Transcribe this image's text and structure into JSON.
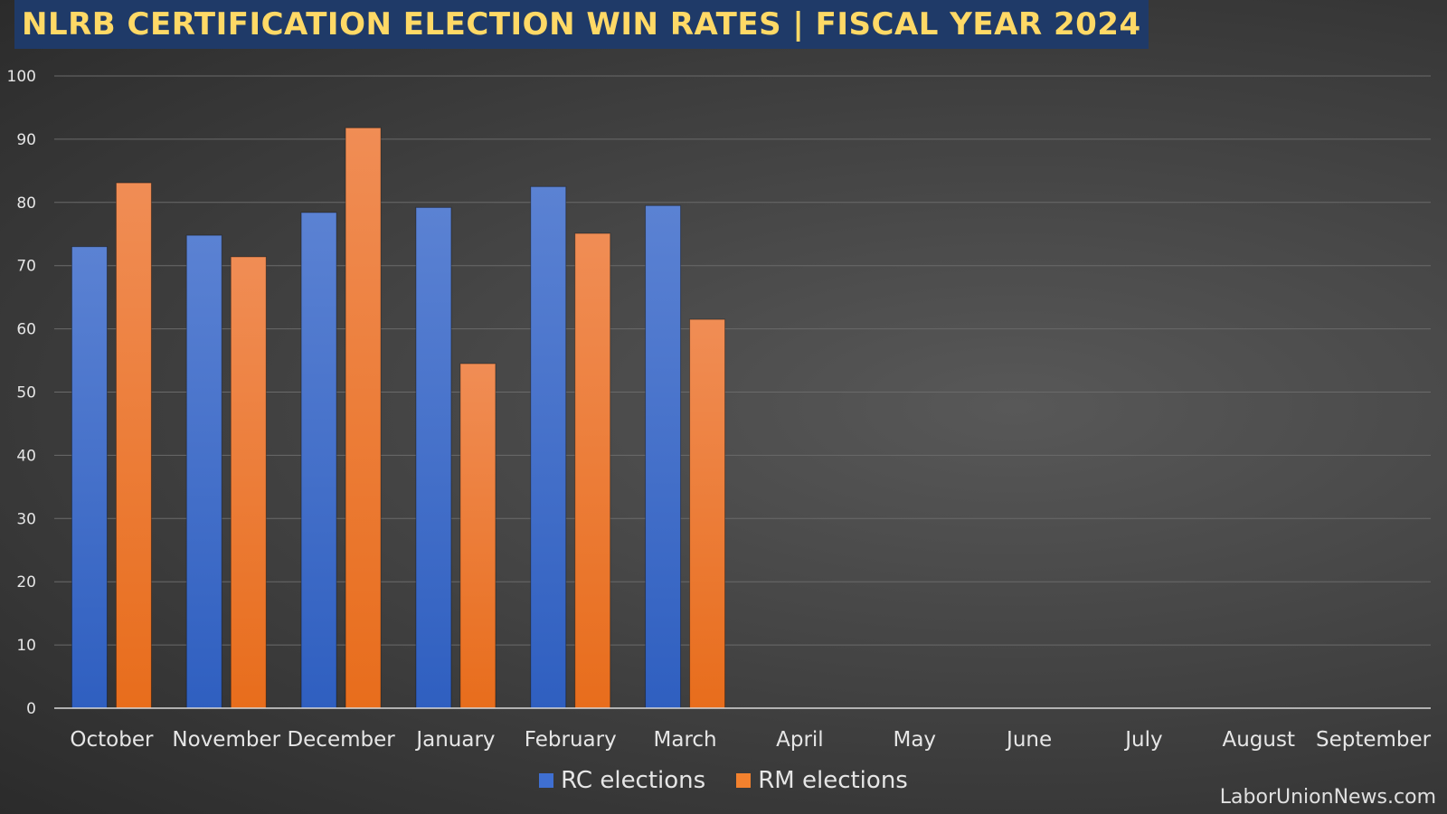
{
  "title": "NLRB CERTIFICATION ELECTION WIN RATES | FISCAL YEAR 2024",
  "source_label": "LaborUnionNews.com",
  "colors": {
    "rc": "#3f6fd1",
    "rm": "#f2812e",
    "title_bg": "#1f3a68",
    "title_text": "#ffd966"
  },
  "chart_data": {
    "type": "bar",
    "categories": [
      "October",
      "November",
      "December",
      "January",
      "February",
      "March",
      "April",
      "May",
      "June",
      "July",
      "August",
      "September"
    ],
    "series": [
      {
        "name": "RC elections",
        "values": [
          73,
          74.8,
          78.4,
          79.2,
          82.5,
          79.5,
          null,
          null,
          null,
          null,
          null,
          null
        ]
      },
      {
        "name": "RM elections",
        "values": [
          83.1,
          71.4,
          91.8,
          54.5,
          75.1,
          61.5,
          null,
          null,
          null,
          null,
          null,
          null
        ]
      }
    ],
    "ylim": [
      0,
      100
    ],
    "yticks": [
      0,
      10,
      20,
      30,
      40,
      50,
      60,
      70,
      80,
      90,
      100
    ],
    "grid": true,
    "legend_position": "bottom"
  }
}
